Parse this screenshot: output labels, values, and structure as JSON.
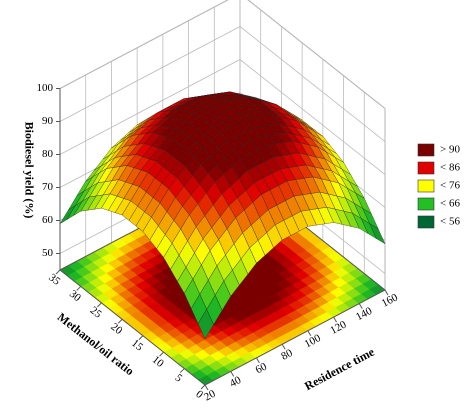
{
  "chart_data": {
    "type": "surface",
    "x_label": "Residence time",
    "y_label": "Methanol/oil ratio",
    "z_label": "Biodiesel yield (%)",
    "x": [
      20,
      40,
      60,
      80,
      100,
      120,
      140,
      160
    ],
    "y": [
      0,
      5,
      10,
      15,
      20,
      25,
      30,
      35
    ],
    "z": [
      [
        59,
        67.8,
        73.7,
        76.6,
        76.6,
        73.7,
        67.8,
        59
      ],
      [
        67.8,
        76.6,
        82.5,
        85.4,
        85.4,
        82.5,
        76.6,
        67.8
      ],
      [
        73.7,
        82.5,
        88.4,
        91.3,
        91.3,
        88.4,
        82.5,
        73.7
      ],
      [
        76.6,
        85.4,
        91.3,
        94.2,
        94.2,
        91.3,
        85.4,
        76.6
      ],
      [
        76.6,
        85.4,
        91.3,
        94.2,
        94.2,
        91.3,
        85.4,
        76.6
      ],
      [
        73.7,
        82.5,
        88.4,
        91.3,
        91.3,
        88.4,
        82.5,
        73.7
      ],
      [
        67.8,
        76.6,
        82.5,
        85.4,
        85.4,
        82.5,
        76.6,
        67.8
      ],
      [
        59,
        67.8,
        73.7,
        76.6,
        76.6,
        73.7,
        67.8,
        59
      ]
    ],
    "xlim": [
      20,
      160
    ],
    "ylim": [
      0,
      35
    ],
    "zlim": [
      45,
      100
    ],
    "xticks": [
      20,
      40,
      60,
      80,
      100,
      120,
      140,
      160
    ],
    "yticks": [
      0,
      5,
      10,
      15,
      20,
      25,
      30,
      35
    ],
    "zticks": [
      50,
      60,
      70,
      80,
      90,
      100
    ],
    "legend": [
      {
        "label": "> 90",
        "value": 90,
        "color": "#7a0000"
      },
      {
        "label": "< 86",
        "value": 86,
        "color": "#e00000"
      },
      {
        "label": "< 76",
        "value": 76,
        "color": "#ffff00"
      },
      {
        "label": "< 66",
        "value": 66,
        "color": "#22c022"
      },
      {
        "label": "< 56",
        "value": 56,
        "color": "#006633"
      }
    ],
    "grid": true
  }
}
